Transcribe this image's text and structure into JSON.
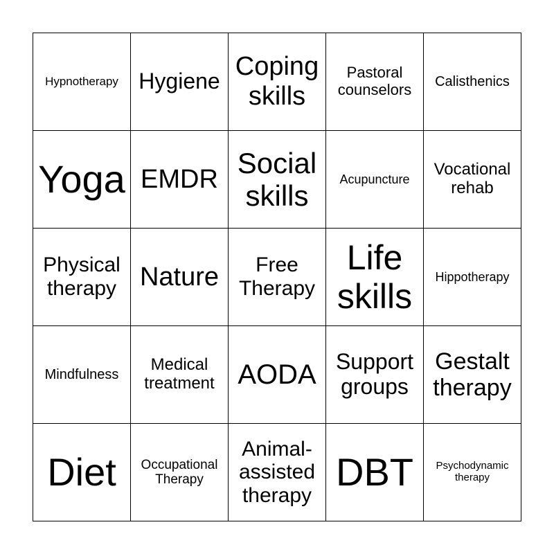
{
  "cells": [
    "Hypnotherapy",
    "Hygiene",
    "Coping skills",
    "Pastoral counselors",
    "Calisthenics",
    "Yoga",
    "EMDR",
    "Social skills",
    "Acupuncture",
    "Vocational rehab",
    "Physical therapy",
    "Nature",
    "Free Therapy",
    "Life skills",
    "Hippotherapy",
    "Mindfulness",
    "Medical treatment",
    "AODA",
    "Support groups",
    "Gestalt therapy",
    "Diet",
    "Occupational Therapy",
    "Animal-assisted therapy",
    "DBT",
    "Psychodynamic therapy"
  ]
}
